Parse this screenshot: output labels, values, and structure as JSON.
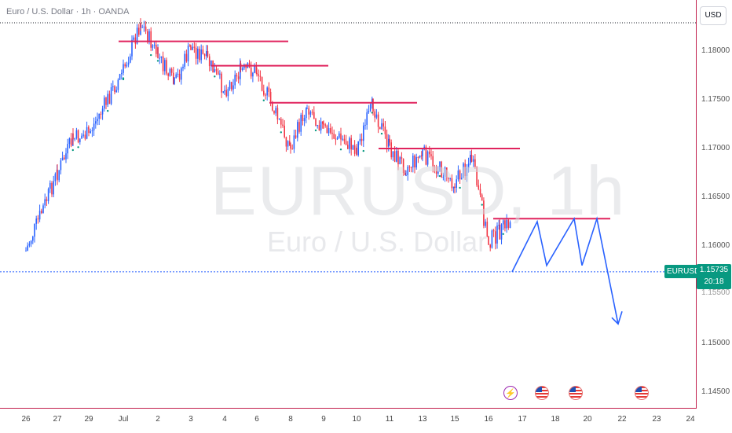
{
  "chart": {
    "title": "Euro / U.S. Dollar · 1h · OANDA",
    "watermark_symbol": "EURUSD, 1h",
    "watermark_name": "Euro / U.S. Dollar",
    "currency": "USD",
    "symbol_badge": "EURUSD",
    "current_price": "1.15735",
    "countdown": "20:18",
    "hidden_tick": "1.15500"
  },
  "colors": {
    "up": "#089981",
    "down": "#f23645",
    "candle_up": "#2962ff",
    "resistance": "#e0245e",
    "projection": "#2962ff",
    "axis": "#c21e4c"
  },
  "icons": [
    "flash-icon",
    "us-flag-icon"
  ],
  "chart_data": {
    "type": "candlestick",
    "title": "Euro / U.S. Dollar · 1h · OANDA",
    "x_ticks": [
      "26",
      "27",
      "29",
      "Jul",
      "2",
      "3",
      "4",
      "6",
      "8",
      "9",
      "10",
      "11",
      "13",
      "15",
      "16",
      "17",
      "18",
      "20",
      "22",
      "23",
      "24"
    ],
    "y_ticks": [
      "1.18000",
      "1.17500",
      "1.17000",
      "1.16500",
      "1.16000",
      "1.15000",
      "1.14500"
    ],
    "ylim": [
      1.142,
      1.184
    ],
    "current_price": 1.15735,
    "price_path": [
      {
        "x": "26",
        "y": 1.1595
      },
      {
        "x": "27",
        "y": 1.1675
      },
      {
        "x": "27",
        "y": 1.171
      },
      {
        "x": "29",
        "y": 1.1715
      },
      {
        "x": "Jul",
        "y": 1.178
      },
      {
        "x": "Jul",
        "y": 1.183
      },
      {
        "x": "2",
        "y": 1.1795
      },
      {
        "x": "2",
        "y": 1.1765
      },
      {
        "x": "3",
        "y": 1.1805
      },
      {
        "x": "3",
        "y": 1.179
      },
      {
        "x": "4",
        "y": 1.176
      },
      {
        "x": "4",
        "y": 1.178
      },
      {
        "x": "6",
        "y": 1.178
      },
      {
        "x": "8",
        "y": 1.17
      },
      {
        "x": "8",
        "y": 1.1745
      },
      {
        "x": "9",
        "y": 1.172
      },
      {
        "x": "10",
        "y": 1.17
      },
      {
        "x": "10",
        "y": 1.1745
      },
      {
        "x": "11",
        "y": 1.17
      },
      {
        "x": "11",
        "y": 1.168
      },
      {
        "x": "13",
        "y": 1.1695
      },
      {
        "x": "15",
        "y": 1.1665
      },
      {
        "x": "15",
        "y": 1.169
      },
      {
        "x": "16",
        "y": 1.1605
      },
      {
        "x": "16",
        "y": 1.1615
      },
      {
        "x": "16",
        "y": 1.1625
      },
      {
        "x": "17",
        "y": 1.15735
      }
    ],
    "resistance_levels": [
      1.181,
      1.1785,
      1.1747,
      1.17,
      1.1628
    ],
    "projection_path": [
      1.15735,
      1.1625,
      1.158,
      1.1628,
      1.158,
      1.1628,
      1.152
    ]
  }
}
